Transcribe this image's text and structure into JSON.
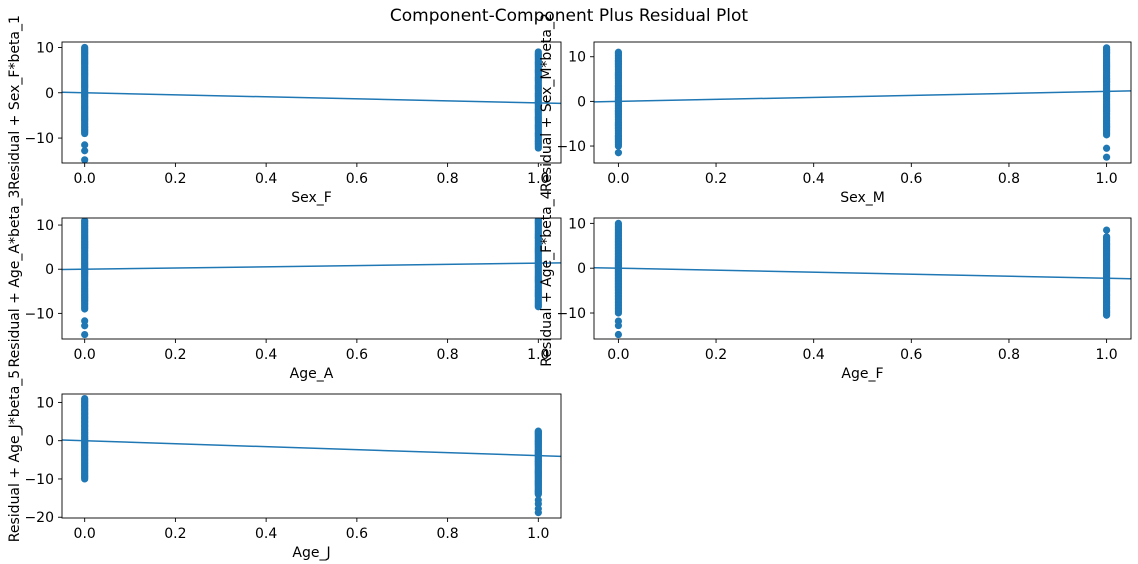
{
  "title": "Component-Component Plus Residual Plot",
  "colors": {
    "series": "#1f77b4",
    "axes": "#000000",
    "background": "#ffffff"
  },
  "chart_data": [
    {
      "type": "scatter",
      "xlabel": "Sex_F",
      "ylabel": "Residual + Sex_F*beta_1",
      "xlim": [
        -0.05,
        1.05
      ],
      "ylim": [
        -15.5,
        11.2
      ],
      "xticks": [
        "0.0",
        "0.2",
        "0.4",
        "0.6",
        "0.8",
        "1.0"
      ],
      "yticks": [
        -10,
        0,
        10
      ],
      "x": [
        0,
        1
      ],
      "y_ranges": [
        [
          -9,
          10
        ],
        [
          -12.2,
          9
        ]
      ],
      "outliers_y": [
        [
          -11.5,
          -12.8,
          -14.8
        ],
        []
      ],
      "fit_line": {
        "x": [
          -0.05,
          1.05
        ],
        "y": [
          0.11,
          -2.35
        ]
      }
    },
    {
      "type": "scatter",
      "xlabel": "Sex_M",
      "ylabel": "Residual + Sex_M*beta_2",
      "xlim": [
        -0.05,
        1.05
      ],
      "ylim": [
        -13.8,
        13.3
      ],
      "xticks": [
        "0.0",
        "0.2",
        "0.4",
        "0.6",
        "0.8",
        "1.0"
      ],
      "yticks": [
        -10,
        0,
        10
      ],
      "x": [
        0,
        1
      ],
      "y_ranges": [
        [
          -10,
          11
        ],
        [
          -7.5,
          12
        ]
      ],
      "outliers_y": [
        [
          -11.5
        ],
        [
          -10.5,
          -12.5
        ]
      ],
      "fit_line": {
        "x": [
          -0.05,
          1.05
        ],
        "y": [
          -0.11,
          2.35
        ]
      }
    },
    {
      "type": "scatter",
      "xlabel": "Age_A",
      "ylabel": "Residual + Age_A*beta_3",
      "xlim": [
        -0.05,
        1.05
      ],
      "ylim": [
        -15.8,
        11.6
      ],
      "xticks": [
        "0.0",
        "0.2",
        "0.4",
        "0.6",
        "0.8",
        "1.0"
      ],
      "yticks": [
        -10,
        0,
        10
      ],
      "x": [
        0,
        1
      ],
      "y_ranges": [
        [
          -9,
          11
        ],
        [
          -8.5,
          11.2
        ]
      ],
      "outliers_y": [
        [
          -11.7,
          -12.8,
          -14.8
        ],
        []
      ],
      "fit_line": {
        "x": [
          -0.05,
          1.05
        ],
        "y": [
          -0.07,
          1.45
        ]
      }
    },
    {
      "type": "scatter",
      "xlabel": "Age_F",
      "ylabel": "Residual + Age_F*beta_4",
      "xlim": [
        -0.05,
        1.05
      ],
      "ylim": [
        -15.8,
        11.2
      ],
      "xticks": [
        "0.0",
        "0.2",
        "0.4",
        "0.6",
        "0.8",
        "1.0"
      ],
      "yticks": [
        -10,
        0,
        10
      ],
      "x": [
        0,
        1
      ],
      "y_ranges": [
        [
          -10,
          10
        ],
        [
          -10.5,
          7
        ]
      ],
      "outliers_y": [
        [
          -11.8,
          -12.8,
          -14.8
        ],
        [
          8.5
        ]
      ],
      "fit_line": {
        "x": [
          -0.05,
          1.05
        ],
        "y": [
          0.11,
          -2.35
        ]
      }
    },
    {
      "type": "scatter",
      "xlabel": "Age_J",
      "ylabel": "Residual + Age_J*beta_5",
      "xlim": [
        -0.05,
        1.05
      ],
      "ylim": [
        -20.2,
        12.2
      ],
      "xticks": [
        "0.0",
        "0.2",
        "0.4",
        "0.6",
        "0.8",
        "1.0"
      ],
      "yticks": [
        -20,
        -10,
        0,
        10
      ],
      "x": [
        0,
        1
      ],
      "y_ranges": [
        [
          -10,
          11
        ],
        [
          -14,
          2.5
        ]
      ],
      "outliers_y": [
        [],
        [
          -15.5,
          -16.5,
          -17.8,
          -18.8
        ]
      ],
      "fit_line": {
        "x": [
          -0.05,
          1.05
        ],
        "y": [
          0.18,
          -4.1
        ]
      }
    }
  ]
}
